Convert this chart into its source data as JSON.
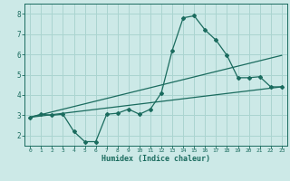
{
  "xlabel": "Humidex (Indice chaleur)",
  "bg_color": "#cce9e7",
  "grid_color": "#aad4d0",
  "line_color": "#1a6b5e",
  "xlim": [
    -0.5,
    23.5
  ],
  "ylim": [
    1.5,
    8.5
  ],
  "xticks": [
    0,
    1,
    2,
    3,
    4,
    5,
    6,
    7,
    8,
    9,
    10,
    11,
    12,
    13,
    14,
    15,
    16,
    17,
    18,
    19,
    20,
    21,
    22,
    23
  ],
  "yticks": [
    2,
    3,
    4,
    5,
    6,
    7,
    8
  ],
  "line1_x": [
    0,
    1,
    2,
    3,
    4,
    5,
    6,
    7,
    8,
    9,
    10,
    11,
    12,
    13,
    14,
    15,
    16,
    17,
    18,
    19,
    20,
    21,
    22,
    23
  ],
  "line1_y": [
    2.9,
    3.05,
    3.0,
    3.05,
    2.2,
    1.7,
    1.7,
    3.05,
    3.1,
    3.3,
    3.05,
    3.3,
    4.1,
    6.2,
    7.8,
    7.9,
    7.2,
    6.7,
    5.95,
    4.85,
    4.85,
    4.9,
    4.4,
    4.4
  ],
  "line2_x": [
    0,
    23
  ],
  "line2_y": [
    2.9,
    4.4
  ],
  "line3_x": [
    0,
    23
  ],
  "line3_y": [
    2.9,
    5.95
  ]
}
